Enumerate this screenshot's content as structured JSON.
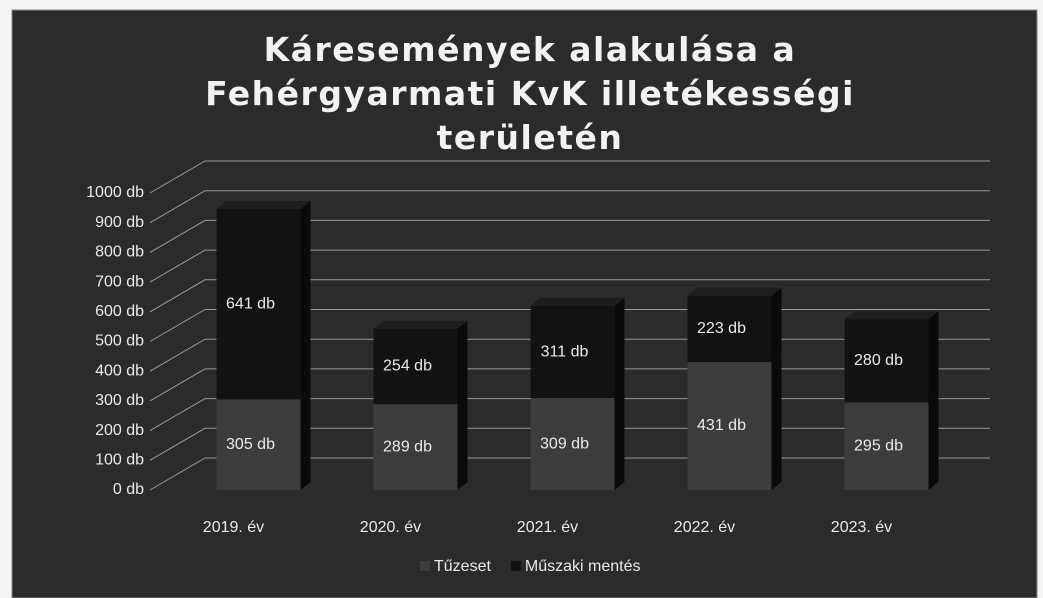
{
  "chart_data": {
    "type": "bar",
    "stacked": true,
    "title": "Káresemények alakulása a Fehérgyarmati KvK illetékességi területén",
    "categories": [
      "2019. év",
      "2020. év",
      "2021. év",
      "2022. év",
      "2023. év"
    ],
    "series": [
      {
        "name": "Tűzeset",
        "color": "#3c3c3c",
        "values": [
          305,
          289,
          309,
          431,
          295
        ],
        "value_labels": [
          "305 db",
          "289 db",
          "309 db",
          "431 db",
          "295 db"
        ]
      },
      {
        "name": "Műszaki mentés",
        "color": "#121212",
        "values": [
          641,
          254,
          311,
          223,
          280
        ],
        "value_labels": [
          "641 db",
          "254 db",
          "311 db",
          "223 db",
          "280 db"
        ]
      }
    ],
    "ylim": [
      0,
      1000
    ],
    "yticks": [
      {
        "value": 0,
        "label": "0 db"
      },
      {
        "value": 100,
        "label": "100 db"
      },
      {
        "value": 200,
        "label": "200 db"
      },
      {
        "value": 300,
        "label": "300 db"
      },
      {
        "value": 400,
        "label": "400 db"
      },
      {
        "value": 500,
        "label": "500 db"
      },
      {
        "value": 600,
        "label": "600 db"
      },
      {
        "value": 700,
        "label": "700 db"
      },
      {
        "value": 800,
        "label": "800 db"
      },
      {
        "value": 900,
        "label": "900 db"
      },
      {
        "value": 1000,
        "label": "1000 db"
      }
    ],
    "grid": true,
    "legend": "bottom"
  }
}
